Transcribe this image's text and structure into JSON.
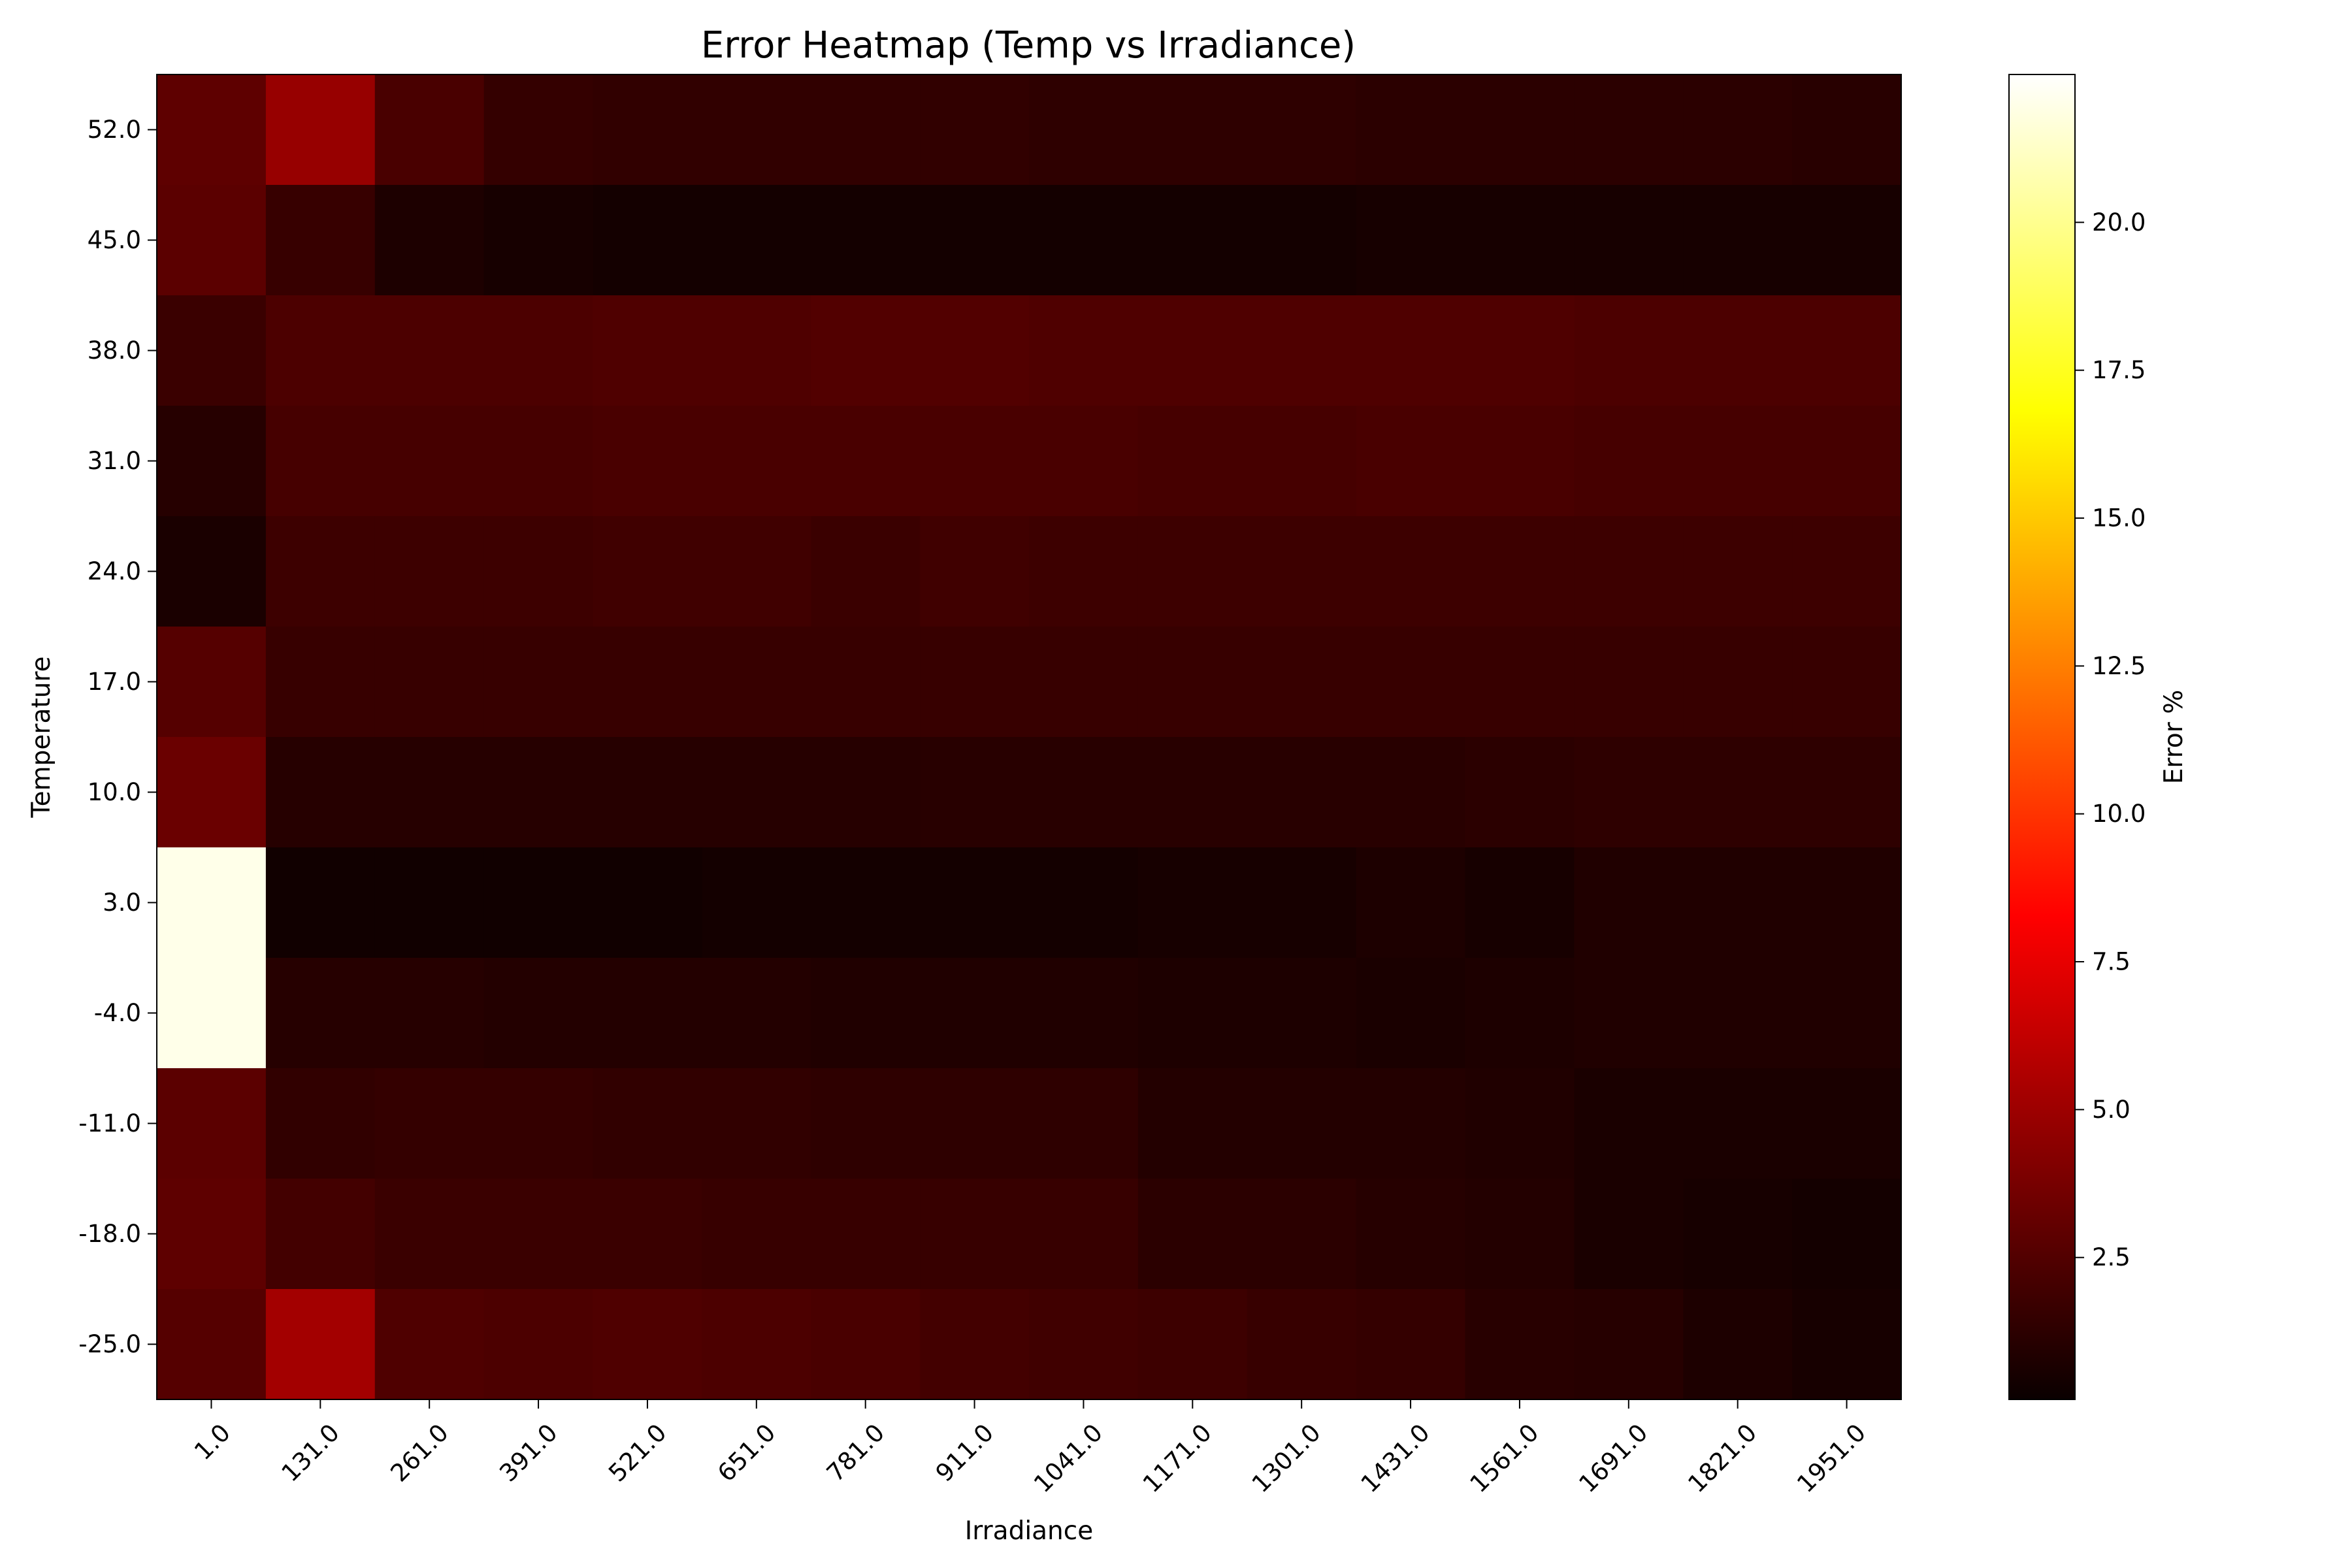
{
  "chart_data": {
    "type": "heatmap",
    "title": "Error Heatmap (Temp vs Irradiance)",
    "xlabel": "Irradiance",
    "ylabel": "Temperature",
    "x_categories": [
      "1.0",
      "131.0",
      "261.0",
      "391.0",
      "521.0",
      "651.0",
      "781.0",
      "911.0",
      "1041.0",
      "1171.0",
      "1301.0",
      "1431.0",
      "1561.0",
      "1691.0",
      "1821.0",
      "1951.0"
    ],
    "y_categories": [
      "52.0",
      "45.0",
      "38.0",
      "31.0",
      "24.0",
      "17.0",
      "10.0",
      "3.0",
      "-4.0",
      "-11.0",
      "-18.0",
      "-25.0"
    ],
    "values": [
      [
        2.9,
        4.8,
        2.2,
        1.5,
        1.4,
        1.4,
        1.4,
        1.4,
        1.3,
        1.3,
        1.3,
        1.2,
        1.2,
        1.2,
        1.2,
        1.1
      ],
      [
        2.8,
        1.6,
        0.7,
        0.5,
        0.4,
        0.4,
        0.4,
        0.4,
        0.4,
        0.4,
        0.4,
        0.5,
        0.5,
        0.5,
        0.5,
        0.5
      ],
      [
        1.7,
        2.3,
        2.3,
        2.3,
        2.4,
        2.4,
        2.5,
        2.5,
        2.4,
        2.4,
        2.4,
        2.4,
        2.4,
        2.3,
        2.3,
        2.3
      ],
      [
        1.0,
        2.1,
        2.1,
        2.1,
        2.2,
        2.2,
        2.2,
        2.2,
        2.2,
        2.1,
        2.1,
        2.2,
        2.2,
        2.1,
        2.1,
        2.1
      ],
      [
        0.6,
        1.8,
        1.8,
        1.8,
        1.9,
        1.9,
        1.7,
        1.9,
        1.8,
        1.8,
        1.8,
        1.8,
        1.8,
        1.8,
        1.8,
        1.8
      ],
      [
        2.6,
        1.6,
        1.6,
        1.6,
        1.6,
        1.6,
        1.6,
        1.6,
        1.6,
        1.6,
        1.6,
        1.6,
        1.6,
        1.6,
        1.6,
        1.6
      ],
      [
        3.3,
        1.0,
        1.0,
        1.0,
        1.0,
        1.0,
        1.0,
        1.1,
        1.1,
        1.1,
        1.1,
        1.1,
        1.2,
        1.3,
        1.3,
        1.3
      ],
      [
        22.0,
        0.3,
        0.3,
        0.3,
        0.3,
        0.4,
        0.4,
        0.4,
        0.4,
        0.5,
        0.5,
        0.7,
        0.5,
        0.8,
        0.8,
        0.8
      ],
      [
        22.0,
        1.0,
        1.0,
        0.9,
        0.9,
        0.9,
        0.8,
        0.8,
        0.8,
        0.7,
        0.7,
        0.6,
        0.7,
        0.8,
        0.8,
        0.8
      ],
      [
        2.8,
        1.4,
        1.5,
        1.5,
        1.4,
        1.4,
        1.3,
        1.3,
        1.3,
        0.9,
        0.9,
        0.9,
        0.8,
        0.6,
        0.6,
        0.6
      ],
      [
        2.9,
        2.0,
        1.7,
        1.7,
        1.7,
        1.6,
        1.6,
        1.6,
        1.6,
        1.2,
        1.2,
        1.0,
        0.9,
        0.6,
        0.5,
        0.4
      ],
      [
        2.6,
        5.2,
        2.4,
        2.3,
        2.4,
        2.3,
        2.2,
        2.0,
        1.9,
        1.8,
        1.6,
        1.5,
        1.1,
        1.0,
        0.7,
        0.5
      ]
    ],
    "colormap": "hot",
    "vmin": 0.1,
    "vmax": 22.5,
    "colorbar": {
      "label": "Error %",
      "ticks": [
        2.5,
        5.0,
        7.5,
        10.0,
        12.5,
        15.0,
        17.5,
        20.0
      ],
      "tick_labels": [
        "2.5",
        "5.0",
        "7.5",
        "10.0",
        "12.5",
        "15.0",
        "17.5",
        "20.0"
      ],
      "placement": "right"
    },
    "grid": false
  }
}
